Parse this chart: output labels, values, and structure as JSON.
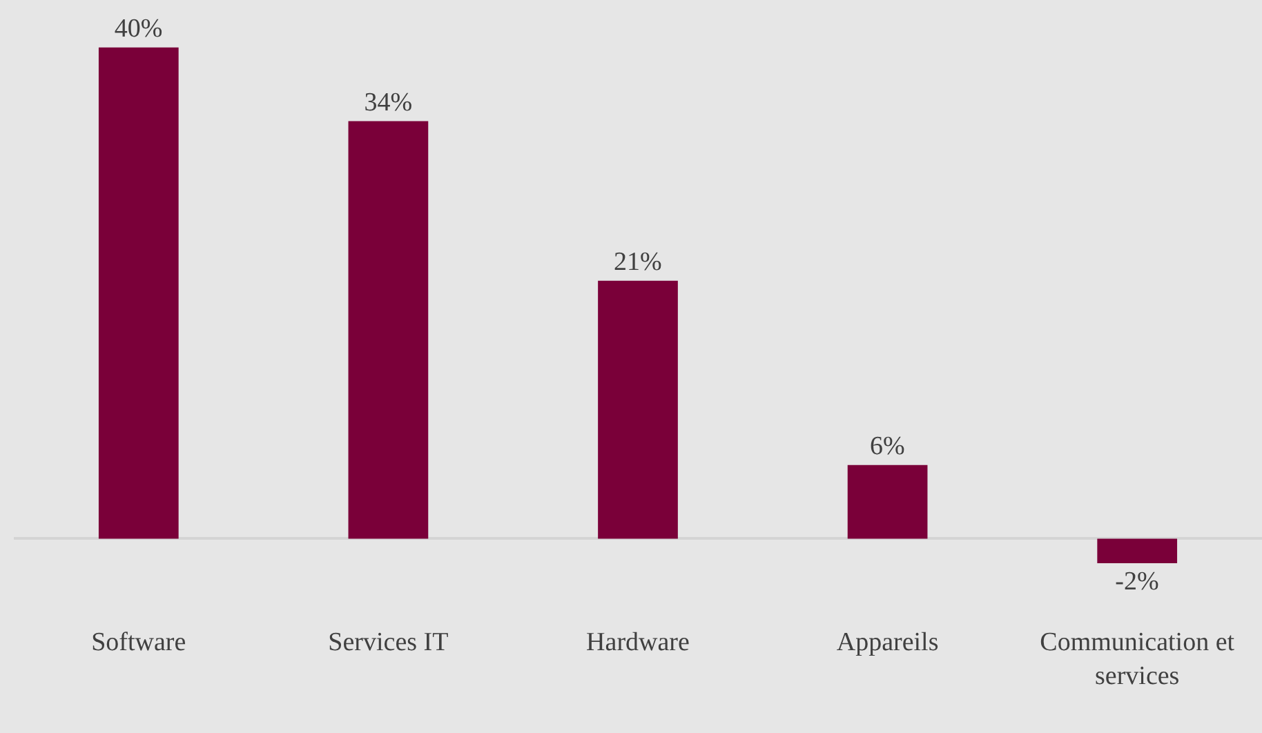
{
  "chart_data": {
    "type": "bar",
    "categories": [
      "Software",
      "Services IT",
      "Hardware",
      "Appareils",
      "Communication et services"
    ],
    "values": [
      40,
      34,
      21,
      6,
      -2
    ],
    "color": "#7a0039",
    "data_labels": true,
    "value_labels": [
      "40%",
      "34%",
      "21%",
      "6%",
      "-2%"
    ],
    "grid": false,
    "legend": false
  }
}
